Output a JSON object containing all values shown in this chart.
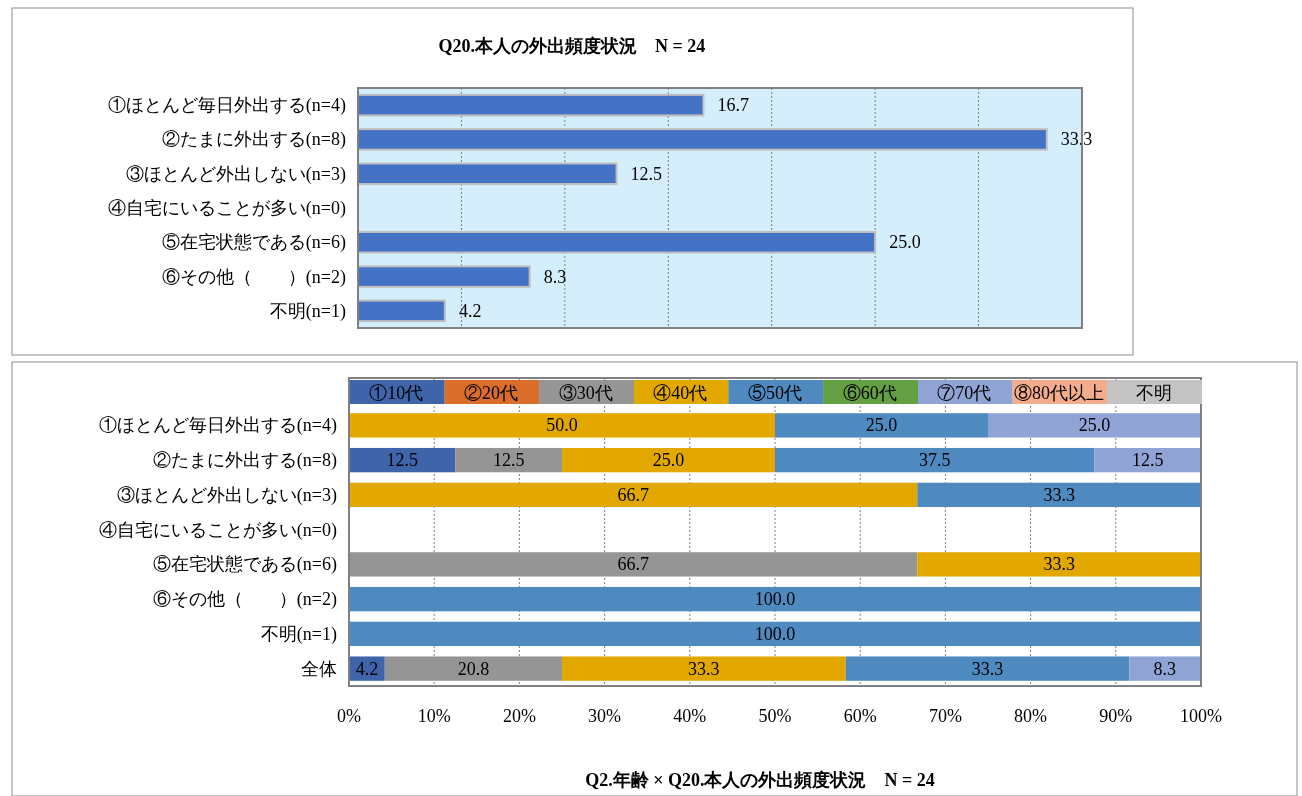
{
  "chart_data": [
    {
      "type": "bar",
      "orientation": "horizontal",
      "title": "Q20.本人の外出頻度状況　N = 24",
      "categories": [
        "①ほとんど毎日外出する(n=4)",
        "②たまに外出する(n=8)",
        "③ほとんど外出しない(n=3)",
        "④自宅にいることが多い(n=0)",
        "⑤在宅状態である(n=6)",
        "⑥その他（　　）(n=2)",
        "不明(n=1)"
      ],
      "values": [
        16.7,
        33.3,
        12.5,
        0,
        25.0,
        8.3,
        4.2
      ],
      "value_labels": [
        "16.7",
        "33.3",
        "12.5",
        null,
        "25.0",
        "8.3",
        "4.2"
      ],
      "color": "#4472c4",
      "xlim": [
        0,
        35
      ],
      "xticks": [
        {
          "value": 5,
          "label": null
        },
        {
          "value": 10,
          "label": null
        },
        {
          "value": 15,
          "label": null
        },
        {
          "value": 20,
          "label": null
        },
        {
          "value": 25,
          "label": null
        },
        {
          "value": 30,
          "label": null
        }
      ],
      "grid": "x"
    },
    {
      "type": "bar",
      "orientation": "horizontal",
      "stacked": true,
      "title": "Q2.年齢 × Q20.本人の外出頻度状況　N = 24",
      "categories": [
        "①ほとんど毎日外出する(n=4)",
        "②たまに外出する(n=8)",
        "③ほとんど外出しない(n=3)",
        "④自宅にいることが多い(n=0)",
        "⑤在宅状態である(n=6)",
        "⑥その他（　　）(n=2)",
        "不明(n=1)",
        "全体"
      ],
      "series": [
        {
          "name": "①10代",
          "color": "#3f64aa",
          "values": [
            null,
            12.5,
            null,
            null,
            null,
            null,
            null,
            4.2
          ],
          "value_labels": [
            null,
            "12.5",
            null,
            null,
            null,
            null,
            null,
            "4.2"
          ]
        },
        {
          "name": "②20代",
          "color": "#db6d2b",
          "values": [
            null,
            null,
            null,
            null,
            null,
            null,
            null,
            null
          ],
          "value_labels": [
            null,
            null,
            null,
            null,
            null,
            null,
            null,
            null
          ]
        },
        {
          "name": "③30代",
          "color": "#959595",
          "values": [
            null,
            12.5,
            null,
            null,
            66.7,
            null,
            null,
            20.8
          ],
          "value_labels": [
            null,
            "12.5",
            null,
            null,
            "66.7",
            null,
            null,
            "20.8"
          ]
        },
        {
          "name": "④40代",
          "color": "#e3a800",
          "values": [
            50.0,
            25.0,
            66.7,
            null,
            33.3,
            null,
            null,
            33.3
          ],
          "value_labels": [
            "50.0",
            "25.0",
            "66.7",
            null,
            "33.3",
            null,
            null,
            "33.3"
          ]
        },
        {
          "name": "⑤50代",
          "color": "#4e89bf",
          "values": [
            25.0,
            37.5,
            33.3,
            null,
            null,
            100.0,
            100.0,
            33.3
          ],
          "value_labels": [
            "25.0",
            "37.5",
            "33.3",
            null,
            null,
            "100.0",
            "100.0",
            "33.3"
          ]
        },
        {
          "name": "⑥60代",
          "color": "#64a043",
          "values": [
            null,
            null,
            null,
            null,
            null,
            null,
            null,
            null
          ],
          "value_labels": [
            null,
            null,
            null,
            null,
            null,
            null,
            null,
            null
          ]
        },
        {
          "name": "⑦70代",
          "color": "#8fa3d5",
          "values": [
            25.0,
            12.5,
            null,
            null,
            null,
            null,
            null,
            8.3
          ],
          "value_labels": [
            "25.0",
            "12.5",
            null,
            null,
            null,
            null,
            null,
            "8.3"
          ]
        },
        {
          "name": "⑧80代以上",
          "color": "#f3ad8c",
          "values": [
            null,
            null,
            null,
            null,
            null,
            null,
            null,
            null
          ],
          "value_labels": [
            null,
            null,
            null,
            null,
            null,
            null,
            null,
            null
          ]
        },
        {
          "name": "不明",
          "color": "#c3c3c3",
          "values": [
            null,
            null,
            null,
            null,
            null,
            null,
            null,
            null
          ],
          "value_labels": [
            null,
            null,
            null,
            null,
            null,
            null,
            null,
            null
          ]
        }
      ],
      "xlim": [
        0,
        100
      ],
      "xticks": [
        {
          "value": 0,
          "label": "0%"
        },
        {
          "value": 10,
          "label": "10%"
        },
        {
          "value": 20,
          "label": "20%"
        },
        {
          "value": 30,
          "label": "30%"
        },
        {
          "value": 40,
          "label": "40%"
        },
        {
          "value": 50,
          "label": "50%"
        },
        {
          "value": 60,
          "label": "60%"
        },
        {
          "value": 70,
          "label": "70%"
        },
        {
          "value": 80,
          "label": "80%"
        },
        {
          "value": 90,
          "label": "90%"
        },
        {
          "value": 100,
          "label": "100%"
        }
      ],
      "grid": "x",
      "legend": "top"
    }
  ]
}
